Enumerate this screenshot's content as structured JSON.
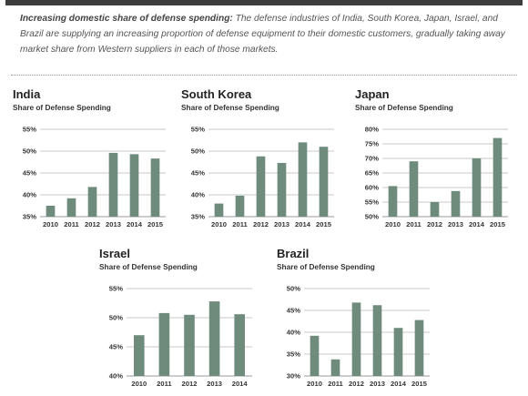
{
  "caption": {
    "lead": "Increasing domestic share of defense spending:",
    "body": " The defense industries of India, South Korea, Japan, Israel, and Brazil are supplying an increasing proportion of defense equipment to their domestic customers, gradually taking away market share from Western suppliers in each of those markets."
  },
  "colors": {
    "bar": "#6f8b7c",
    "grid": "#c9c9c9",
    "axis": "#999999"
  },
  "chart_data": [
    {
      "type": "bar",
      "title": "India",
      "ylabel": "Share of Defense Spending",
      "categories": [
        "2010",
        "2011",
        "2012",
        "2013",
        "2014",
        "2015"
      ],
      "values": [
        37.5,
        39.2,
        41.8,
        49.6,
        49.3,
        48.3
      ],
      "ylim": [
        35,
        55
      ],
      "yticks": [
        "35%",
        "40%",
        "45%",
        "50%",
        "55%"
      ],
      "grid": true
    },
    {
      "type": "bar",
      "title": "South Korea",
      "ylabel": "Share of Defense Spending",
      "categories": [
        "2010",
        "2011",
        "2012",
        "2013",
        "2014",
        "2015"
      ],
      "values": [
        38.0,
        39.8,
        48.8,
        47.3,
        52.0,
        51.0
      ],
      "ylim": [
        35,
        55
      ],
      "yticks": [
        "35%",
        "40%",
        "45%",
        "50%",
        "55%"
      ],
      "grid": true
    },
    {
      "type": "bar",
      "title": "Japan",
      "ylabel": "Share of Defense Spending",
      "categories": [
        "2010",
        "2011",
        "2012",
        "2013",
        "2014",
        "2015"
      ],
      "values": [
        60.5,
        69.0,
        55.0,
        58.8,
        70.0,
        77.0
      ],
      "ylim": [
        50,
        80
      ],
      "yticks": [
        "50%",
        "55%",
        "60%",
        "65%",
        "70%",
        "75%",
        "80%"
      ],
      "grid": true
    },
    {
      "type": "bar",
      "title": "Israel",
      "ylabel": "Share of Defense Spending",
      "categories": [
        "2010",
        "2011",
        "2012",
        "2013",
        "2014"
      ],
      "values": [
        47.0,
        50.8,
        50.5,
        52.8,
        50.6
      ],
      "ylim": [
        40,
        55
      ],
      "yticks": [
        "40%",
        "45%",
        "50%",
        "55%"
      ],
      "grid": true
    },
    {
      "type": "bar",
      "title": "Brazil",
      "ylabel": "Share of Defense Spending",
      "categories": [
        "2010",
        "2011",
        "2012",
        "2013",
        "2014",
        "2015"
      ],
      "values": [
        39.2,
        33.8,
        46.8,
        46.2,
        41.0,
        42.8
      ],
      "ylim": [
        30,
        50
      ],
      "yticks": [
        "30%",
        "35%",
        "40%",
        "45%",
        "50%"
      ],
      "grid": true
    }
  ]
}
